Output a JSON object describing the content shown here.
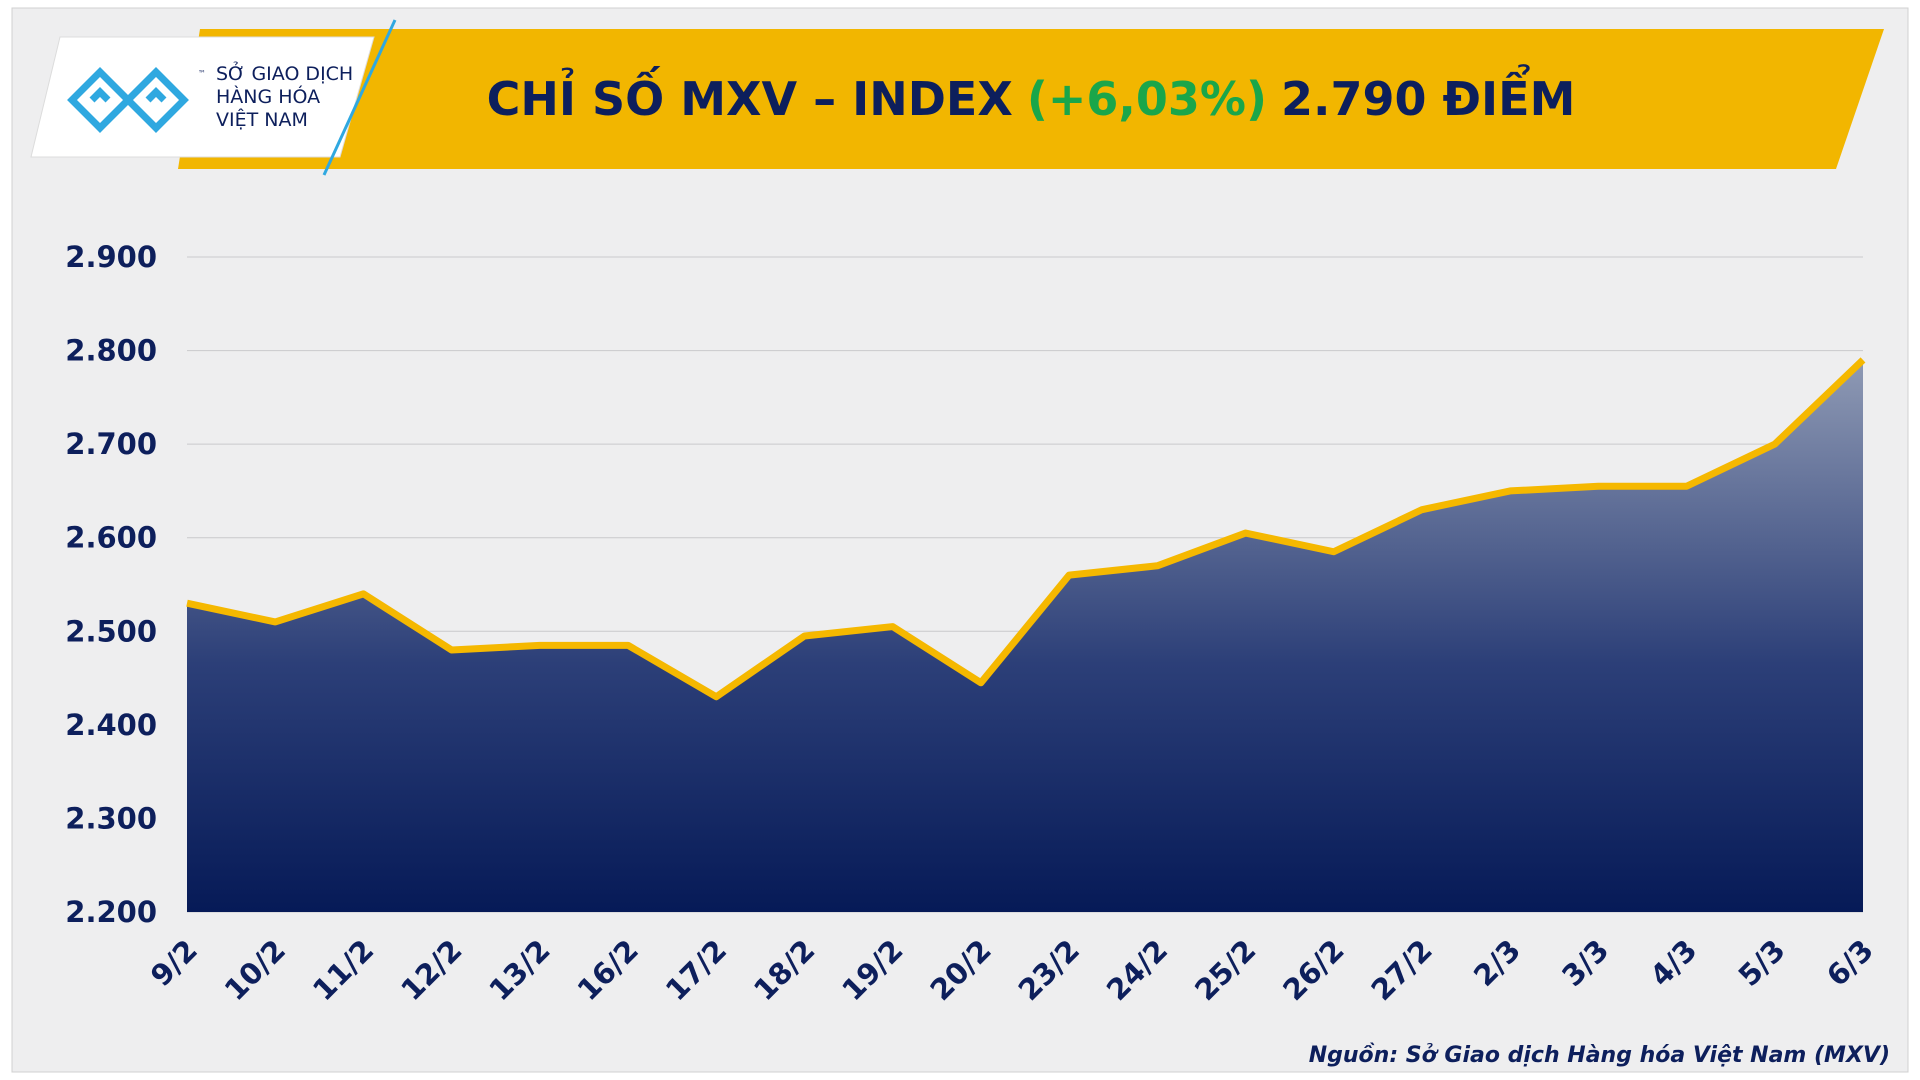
{
  "logo": {
    "line1": "SỞ GIAO DỊCH",
    "line2": "HÀNG HÓA",
    "line3": "VIỆT NAM",
    "mark": "™"
  },
  "chart_data": {
    "type": "area-line",
    "title": {
      "part1": "CHỈ SỐ MXV – INDEX",
      "part2": "(+6,03%)",
      "part3": "2.790 ĐIỂM"
    },
    "categories": [
      "9/2",
      "10/2",
      "11/2",
      "12/2",
      "13/2",
      "16/2",
      "17/2",
      "18/2",
      "19/2",
      "20/2",
      "23/2",
      "24/2",
      "25/2",
      "26/2",
      "27/2",
      "2/3",
      "3/3",
      "4/3",
      "5/3",
      "6/3"
    ],
    "values": [
      2530,
      2510,
      2540,
      2480,
      2485,
      2485,
      2430,
      2495,
      2505,
      2445,
      2560,
      2570,
      2605,
      2585,
      2630,
      2650,
      2655,
      2655,
      2700,
      2790
    ],
    "color": "#f5b800",
    "ylim": [
      2200,
      2900
    ],
    "yticks": [
      {
        "value": 2200,
        "label": "2.200"
      },
      {
        "value": 2300,
        "label": "2.300"
      },
      {
        "value": 2400,
        "label": "2.400"
      },
      {
        "value": 2500,
        "label": "2.500"
      },
      {
        "value": 2600,
        "label": "2.600"
      },
      {
        "value": 2700,
        "label": "2.700"
      },
      {
        "value": 2800,
        "label": "2.800"
      },
      {
        "value": 2900,
        "label": "2.900"
      }
    ],
    "grid": true,
    "source": "Nguồn: Sở Giao dịch Hàng hóa Việt Nam (MXV)"
  }
}
